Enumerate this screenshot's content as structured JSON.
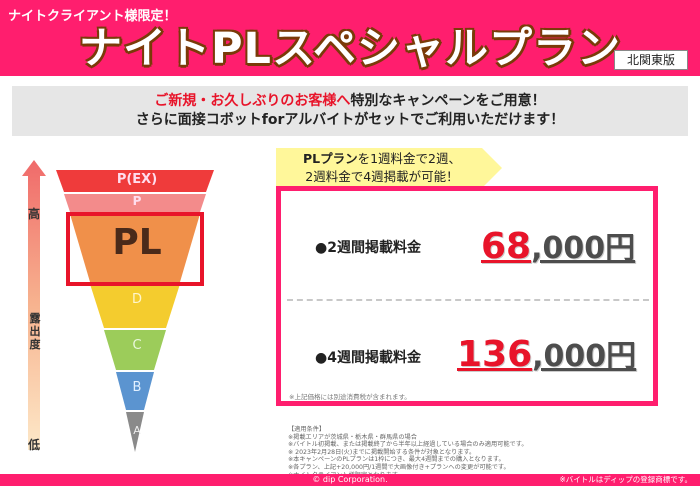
{
  "header": {
    "limited": "ナイトクライアント様限定！",
    "title": "ナイトPLスペシャルプラン",
    "region": "北関東版"
  },
  "banner": {
    "line1_red": "ご新規・お久しぶりのお客様へ",
    "line1_rest": "特別なキャンペーンをご用意！",
    "line2": "さらに面接コボットforアルバイトがセットでご利用いただけます！"
  },
  "pyramid": {
    "axis_high": "高",
    "axis_mid": "露出度",
    "axis_low": "低",
    "tiers": {
      "pex": "P(EX)",
      "p": "P",
      "pl": "PL",
      "d": "D",
      "c": "C",
      "b": "B",
      "a": "A"
    },
    "colors": {
      "pex": "#ef3b3b",
      "p": "#f38b8b",
      "pl": "#f0904a",
      "d": "#f4cc2e",
      "c": "#9ccc5a",
      "b": "#5b94d0",
      "a": "#8a8a8a",
      "highlight": "#e8142a"
    }
  },
  "callout": {
    "line1_bold": "PLプラン",
    "line1_rest": "を1週料金で2週、",
    "line2": "2週料金で4週掲載が可能！"
  },
  "prices": {
    "row1_label": "●2週間掲載料金",
    "row1_big": "68",
    "row1_small": ",000円",
    "row2_label": "●4週間掲載料金",
    "row2_big": "136",
    "row2_small": ",000円",
    "note": "※上記価格には別途消費税が含まれます。"
  },
  "terms": [
    "【適用条件】",
    "※掲載エリアが茨城県・栃木県・群馬県の場合",
    "※バイトル初掲載、または掲載終了から半年以上経過している場合のみ適用可能です。",
    "※ 2023年2月28日(火)までに掲載開始する条件が対象となります。",
    "※本キャンペーンのPLプランは1枠につき、最大4週間までの購入となります。",
    "※各プラン、上記+20,000円/1週間で大画像付き+プランへの変更が可能です。",
    "※ナイトクライアント様限定となります。"
  ],
  "footer": {
    "copyright": "© dip Corporation.",
    "trademark": "※バイトルはディップの登録商標です。"
  }
}
